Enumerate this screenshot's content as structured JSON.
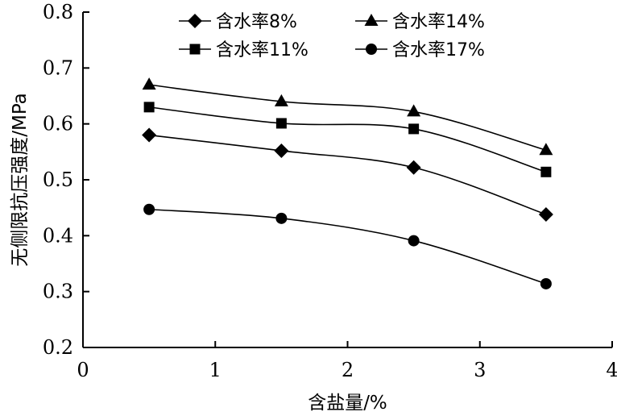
{
  "chart_data": {
    "type": "line",
    "title": "",
    "xlabel": "含盐量/%",
    "ylabel": "无侧限抗压强度/MPa",
    "xlim": [
      0,
      4
    ],
    "ylim": [
      0.2,
      0.8
    ],
    "x_ticks": [
      "0",
      "1",
      "2",
      "3",
      "4"
    ],
    "y_ticks": [
      "0.2",
      "0.3",
      "0.4",
      "0.5",
      "0.6",
      "0.7",
      "0.8"
    ],
    "grid": false,
    "legend_position": "top-right",
    "x": [
      0.5,
      1.5,
      2.5,
      3.5
    ],
    "series": [
      {
        "name": "含水率8%",
        "marker": "diamond",
        "values": [
          0.58,
          0.552,
          0.522,
          0.438
        ]
      },
      {
        "name": "含水率14%",
        "marker": "triangle",
        "values": [
          0.67,
          0.64,
          0.622,
          0.553
        ]
      },
      {
        "name": "含水率11%",
        "marker": "square",
        "values": [
          0.63,
          0.601,
          0.591,
          0.514
        ]
      },
      {
        "name": "含水率17%",
        "marker": "circle",
        "values": [
          0.447,
          0.431,
          0.391,
          0.314
        ]
      }
    ],
    "line_color": "#000000"
  }
}
